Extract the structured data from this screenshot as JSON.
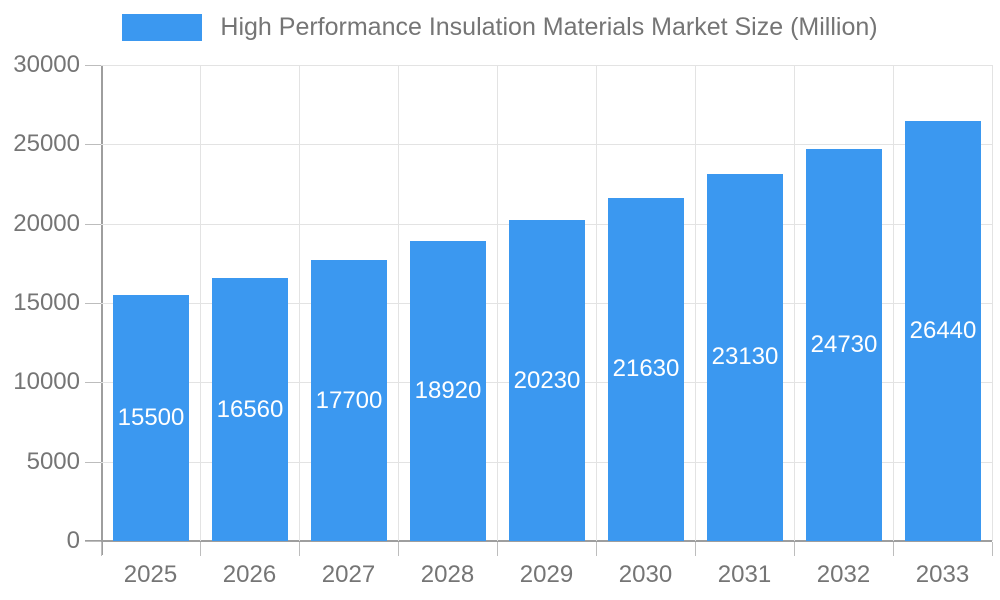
{
  "chart_data": {
    "type": "bar",
    "title": "High Performance Insulation Materials Market Size (Million)",
    "categories": [
      "2025",
      "2026",
      "2027",
      "2028",
      "2029",
      "2030",
      "2031",
      "2032",
      "2033"
    ],
    "values": [
      15500,
      16560,
      17700,
      18920,
      20230,
      21630,
      23130,
      24730,
      26440
    ],
    "xlabel": "",
    "ylabel": "",
    "ylim": [
      0,
      30000
    ],
    "ytick_step": 5000,
    "grid": true,
    "legend_position": "top-center",
    "bar_color": "#3B98F0",
    "value_label_color": "#FFFFFF"
  },
  "legend": {
    "label": "High Performance Insulation Materials Market Size (Million)"
  },
  "colors": {
    "bar": "#3B98F0",
    "axis_text": "#757575",
    "bar_value_text": "#FFFFFF",
    "gridline": "#E3E3E3",
    "axis_line": "#9E9E9E",
    "tick": "#BDBDBD",
    "background": "#FFFFFF"
  }
}
